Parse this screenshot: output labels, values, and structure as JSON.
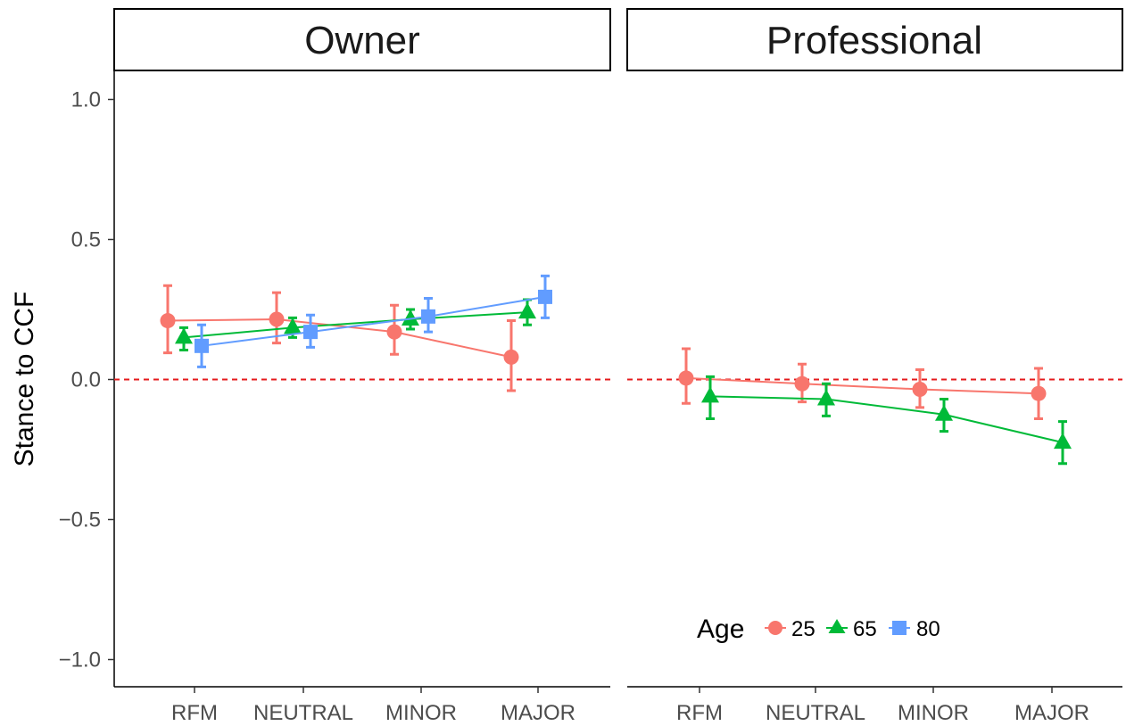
{
  "chart_data": {
    "type": "line",
    "ylabel": "Stance to CCF",
    "xlabel": "",
    "categories": [
      "RFM",
      "NEUTRAL",
      "MINOR",
      "MAJOR"
    ],
    "ylim": [
      -1.1,
      1.1
    ],
    "yticks": [
      -1.0,
      -0.5,
      0.0,
      0.5,
      1.0
    ],
    "ytick_labels": [
      "−1.0",
      "−0.5",
      "0.0",
      "0.5",
      "1.0"
    ],
    "reference_line": {
      "y": 0,
      "style": "dashed",
      "color": "#E41A1C"
    },
    "legend": {
      "title": "Age",
      "placement": "bottom-right inside",
      "entries": [
        "25",
        "65",
        "80"
      ]
    },
    "grid": false,
    "panels": [
      {
        "name": "Owner",
        "series": [
          {
            "name": "25",
            "color": "#F8766D",
            "shape": "circle",
            "values": [
              0.21,
              0.215,
              0.17,
              0.08
            ],
            "lower": [
              0.095,
              0.13,
              0.09,
              -0.04
            ],
            "upper": [
              0.335,
              0.31,
              0.265,
              0.21
            ]
          },
          {
            "name": "65",
            "color": "#00BA38",
            "shape": "triangle",
            "values": [
              0.15,
              0.185,
              0.215,
              0.24
            ],
            "lower": [
              0.105,
              0.15,
              0.18,
              0.195
            ],
            "upper": [
              0.185,
              0.22,
              0.25,
              0.285
            ]
          },
          {
            "name": "80",
            "color": "#619CFF",
            "shape": "square",
            "values": [
              0.12,
              0.17,
              0.225,
              0.295
            ],
            "lower": [
              0.045,
              0.115,
              0.17,
              0.22
            ],
            "upper": [
              0.195,
              0.23,
              0.29,
              0.37
            ]
          }
        ]
      },
      {
        "name": "Professional",
        "series": [
          {
            "name": "25",
            "color": "#F8766D",
            "shape": "circle",
            "values": [
              0.005,
              -0.015,
              -0.035,
              -0.05
            ],
            "lower": [
              -0.085,
              -0.08,
              -0.1,
              -0.14
            ],
            "upper": [
              0.11,
              0.055,
              0.035,
              0.04
            ]
          },
          {
            "name": "65",
            "color": "#00BA38",
            "shape": "triangle",
            "values": [
              -0.06,
              -0.07,
              -0.125,
              -0.225
            ],
            "lower": [
              -0.14,
              -0.13,
              -0.185,
              -0.3
            ],
            "upper": [
              0.01,
              -0.015,
              -0.07,
              -0.15
            ]
          }
        ]
      }
    ]
  }
}
